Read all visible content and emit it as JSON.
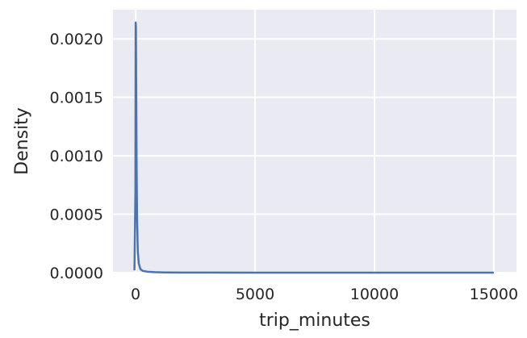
{
  "chart_data": {
    "type": "line",
    "title": "",
    "xlabel": "trip_minutes",
    "ylabel": "Density",
    "xlim": [
      -950,
      15950
    ],
    "ylim": [
      0,
      0.00225
    ],
    "xticks": [
      0,
      5000,
      10000,
      15000
    ],
    "xtick_labels": [
      "0",
      "5000",
      "10000",
      "15000"
    ],
    "yticks": [
      0,
      0.0005,
      0.001,
      0.0015,
      0.002
    ],
    "ytick_labels": [
      "0.0000",
      "0.0005",
      "0.0010",
      "0.0015",
      "0.0020"
    ],
    "grid": true,
    "background": "#eaeaf2",
    "grid_color": "#ffffff",
    "series": [
      {
        "color": "#4c72b0",
        "x": [
          -50,
          -10,
          0,
          10,
          20,
          40,
          60,
          90,
          130,
          200,
          300,
          500,
          800,
          1200,
          2000,
          5000,
          10000,
          15000
        ],
        "y": [
          2e-05,
          0.0007,
          0.00214,
          0.0021,
          0.0017,
          0.0009,
          0.00045,
          0.00018,
          8e-05,
          3e-05,
          1.5e-05,
          8e-06,
          4e-06,
          2e-06,
          1e-06,
          3e-07,
          1e-07,
          3e-08
        ]
      }
    ]
  }
}
